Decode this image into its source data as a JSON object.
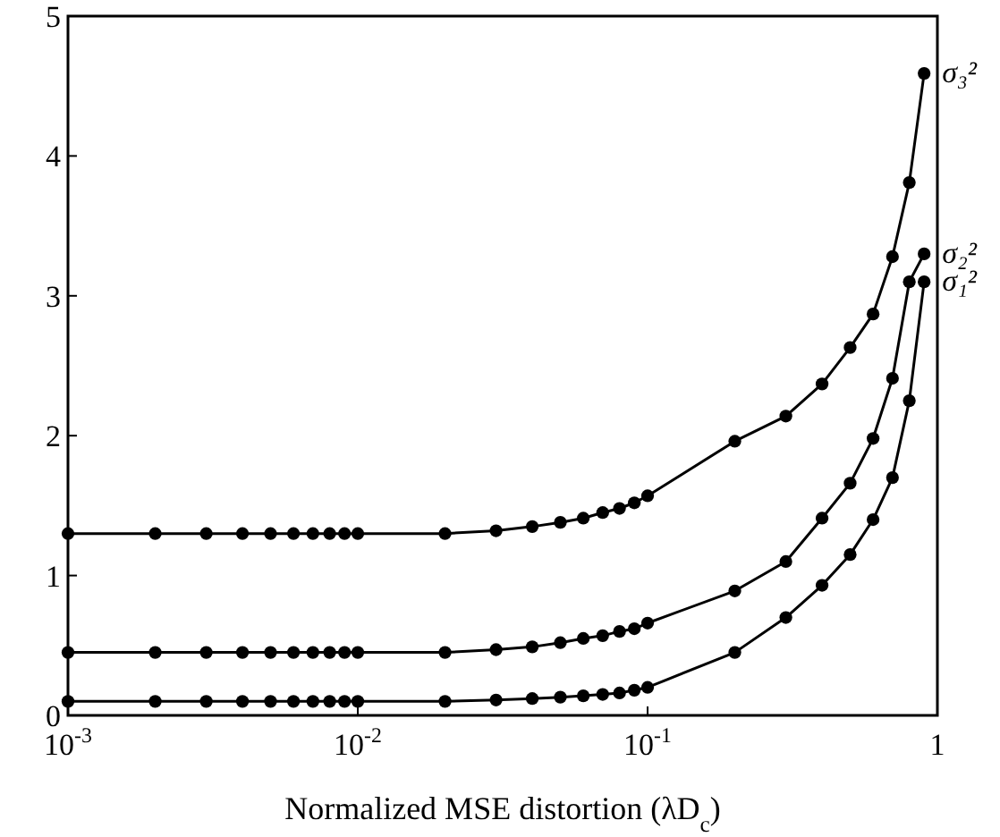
{
  "chart_data": {
    "type": "line",
    "xlabel": "Normalized MSE distortion (λD$_{c}$)",
    "log": "x",
    "marker": "circle",
    "grid": false,
    "x": [
      0.001,
      0.002,
      0.003,
      0.004,
      0.005,
      0.006,
      0.007,
      0.008,
      0.009,
      0.01,
      0.02,
      0.03,
      0.04,
      0.05,
      0.06,
      0.07,
      0.08,
      0.09,
      0.1,
      0.2,
      0.3,
      0.4,
      0.5,
      0.6,
      0.7,
      0.8,
      0.9
    ],
    "xlim": [
      0.001,
      1
    ],
    "xticks": [
      {
        "value": 0.001,
        "label": "10$^{-3}$"
      },
      {
        "value": 0.01,
        "label": "10$^{-2}$"
      },
      {
        "value": 0.1,
        "label": "10$^{-1}$"
      },
      1
    ],
    "ylim": [
      0,
      5
    ],
    "yticks": [
      0,
      1,
      2,
      3,
      4,
      5
    ],
    "series": [
      {
        "name": "σ₃²",
        "color": "#000000",
        "values": [
          1.3,
          1.3,
          1.3,
          1.3,
          1.3,
          1.3,
          1.3,
          1.3,
          1.3,
          1.3,
          1.3,
          1.32,
          1.35,
          1.38,
          1.41,
          1.45,
          1.48,
          1.52,
          1.57,
          1.96,
          2.14,
          2.37,
          2.63,
          2.87,
          3.28,
          3.81,
          4.59
        ]
      },
      {
        "name": "σ₂²",
        "color": "#000000",
        "values": [
          0.45,
          0.45,
          0.45,
          0.45,
          0.45,
          0.45,
          0.45,
          0.45,
          0.45,
          0.45,
          0.45,
          0.47,
          0.49,
          0.52,
          0.55,
          0.57,
          0.6,
          0.62,
          0.66,
          0.89,
          1.1,
          1.41,
          1.66,
          1.98,
          2.41,
          3.1,
          3.3
        ]
      },
      {
        "name": "σ₁²",
        "color": "#000000",
        "values": [
          0.1,
          0.1,
          0.1,
          0.1,
          0.1,
          0.1,
          0.1,
          0.1,
          0.1,
          0.1,
          0.1,
          0.11,
          0.12,
          0.13,
          0.14,
          0.15,
          0.16,
          0.18,
          0.2,
          0.45,
          0.7,
          0.93,
          1.15,
          1.4,
          1.7,
          2.25,
          3.1
        ]
      }
    ]
  }
}
